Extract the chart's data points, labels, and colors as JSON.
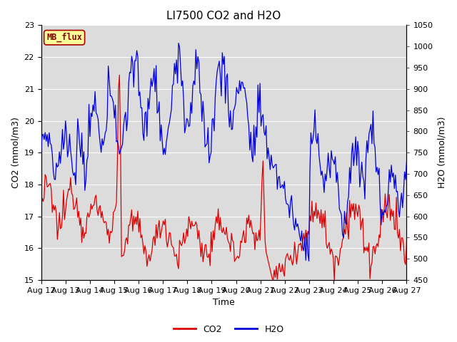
{
  "title": "LI7500 CO2 and H2O",
  "xlabel": "Time",
  "ylabel_left": "CO2 (mmol/m3)",
  "ylabel_right": "H2O (mmol/m3)",
  "ylim_left": [
    15.0,
    23.0
  ],
  "ylim_right": [
    450,
    1050
  ],
  "yticks_left": [
    15.0,
    16.0,
    17.0,
    18.0,
    19.0,
    20.0,
    21.0,
    22.0,
    23.0
  ],
  "yticks_right": [
    450,
    500,
    550,
    600,
    650,
    700,
    750,
    800,
    850,
    900,
    950,
    1000,
    1050
  ],
  "xtick_labels": [
    "Aug 12",
    "Aug 13",
    "Aug 14",
    "Aug 15",
    "Aug 16",
    "Aug 17",
    "Aug 18",
    "Aug 19",
    "Aug 20",
    "Aug 21",
    "Aug 22",
    "Aug 23",
    "Aug 24",
    "Aug 25",
    "Aug 26",
    "Aug 27"
  ],
  "bg_color": "#dcdcdc",
  "co2_color": "#dd0000",
  "h2o_color": "#0000dd",
  "label_box_facecolor": "#ffff99",
  "label_box_edgecolor": "#aa0000",
  "label_text": "MB_flux",
  "label_text_color": "#880000",
  "legend_co2": "CO2",
  "legend_h2o": "H2O",
  "linewidth": 0.9,
  "grid_color": "#ffffff",
  "title_fontsize": 11,
  "axis_fontsize": 9,
  "tick_fontsize": 8,
  "legend_fontsize": 9
}
